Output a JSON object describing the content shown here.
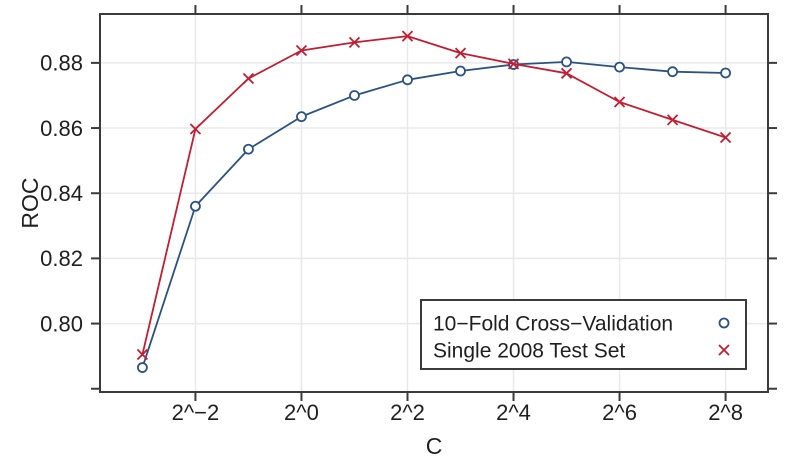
{
  "chart_data": {
    "type": "line",
    "title": "",
    "xlabel": "C",
    "ylabel": "ROC",
    "x_scale": "log2",
    "x_exponents": [
      -3,
      -2,
      -1,
      0,
      1,
      2,
      3,
      4,
      5,
      6,
      7,
      8
    ],
    "series": [
      {
        "name": "10−Fold Cross−Validation",
        "marker": "circle",
        "color": "#2B5282",
        "values": [
          0.7865,
          0.836,
          0.8535,
          0.8635,
          0.87,
          0.8748,
          0.8775,
          0.8795,
          0.8803,
          0.8787,
          0.8773,
          0.8769
        ]
      },
      {
        "name": "Single 2008 Test Set",
        "marker": "x",
        "color": "#C11E33",
        "values": [
          0.7905,
          0.8597,
          0.8752,
          0.8838,
          0.8863,
          0.8882,
          0.883,
          0.8797,
          0.8768,
          0.868,
          0.8625,
          0.8571
        ]
      }
    ],
    "x_ticks": [
      {
        "exp": -2,
        "label": "2^−2"
      },
      {
        "exp": 0,
        "label": "2^0"
      },
      {
        "exp": 2,
        "label": "2^2"
      },
      {
        "exp": 4,
        "label": "2^4"
      },
      {
        "exp": 6,
        "label": "2^6"
      },
      {
        "exp": 8,
        "label": "2^8"
      }
    ],
    "y_ticks": [
      {
        "value": 0.8,
        "label": "0.80"
      },
      {
        "value": 0.82,
        "label": "0.82"
      },
      {
        "value": 0.84,
        "label": "0.84"
      },
      {
        "value": 0.86,
        "label": "0.86"
      },
      {
        "value": 0.88,
        "label": "0.88"
      }
    ],
    "y_extra_unlabeled_ticks": [
      0.78
    ],
    "xlim_exp": [
      -3.8,
      8.8
    ],
    "ylim": [
      0.779,
      0.895
    ],
    "grid": true,
    "legend_position": "bottom-right"
  },
  "colors": {
    "box": "#3B3B3B",
    "grid": "#E9E9E9",
    "text": "#1F1F1F",
    "background": "#FFFFFF"
  }
}
